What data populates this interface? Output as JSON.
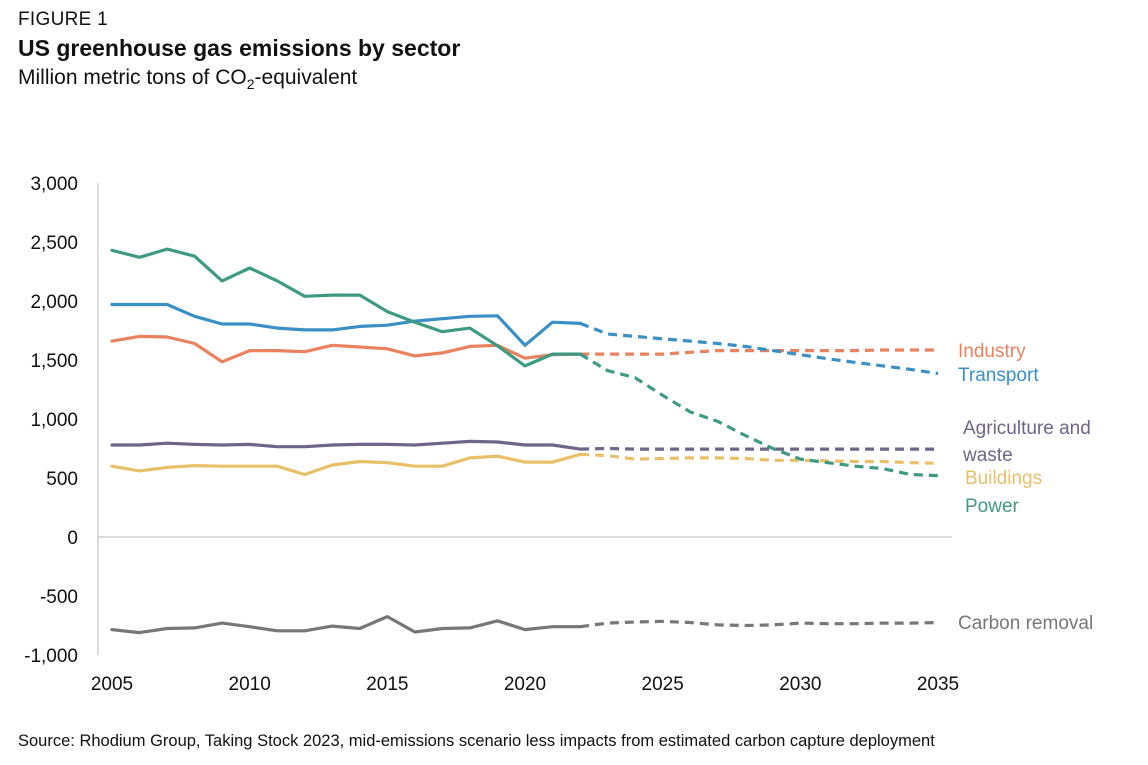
{
  "header": {
    "kicker": "FIGURE 1",
    "title": "US greenhouse gas emissions by sector",
    "subtitle_main": "Million metric tons of CO",
    "subtitle_sub": "2",
    "subtitle_tail": "-equivalent"
  },
  "footer": {
    "source": "Source: Rhodium Group, Taking Stock 2023, mid-emissions scenario less impacts from estimated carbon capture deployment"
  },
  "chart_data": {
    "type": "line",
    "title": "US greenhouse gas emissions by sector",
    "ylabel": "Million metric tons of CO2-equivalent",
    "xlim": [
      2005,
      2035
    ],
    "ylim": [
      -1000,
      3000
    ],
    "x_ticks": [
      2005,
      2010,
      2015,
      2020,
      2025,
      2030,
      2035
    ],
    "y_ticks": [
      3000,
      2500,
      2000,
      1500,
      1000,
      500,
      0,
      -500,
      -1000
    ],
    "y_tick_labels": [
      "3,000",
      "2,500",
      "2,000",
      "1,500",
      "1,000",
      "500",
      "0",
      "-500",
      "-1,000"
    ],
    "x_tick_labels": [
      "2005",
      "2010",
      "2015",
      "2020",
      "2025",
      "2030",
      "2035"
    ],
    "grid": false,
    "legend": "direct labels at right end of lines",
    "historical_end": 2022,
    "projection_style": "dashed",
    "x": [
      2005,
      2006,
      2007,
      2008,
      2009,
      2010,
      2011,
      2012,
      2013,
      2014,
      2015,
      2016,
      2017,
      2018,
      2019,
      2020,
      2021,
      2022,
      2023,
      2024,
      2025,
      2026,
      2027,
      2028,
      2029,
      2030,
      2031,
      2032,
      2033,
      2034,
      2035
    ],
    "series": [
      {
        "name": "Industry",
        "color": "#E8825F",
        "values": [
          1660,
          1700,
          1695,
          1640,
          1485,
          1580,
          1580,
          1570,
          1625,
          1610,
          1595,
          1535,
          1560,
          1615,
          1625,
          1515,
          1545,
          1550,
          1550,
          1550,
          1550,
          1565,
          1580,
          1580,
          1580,
          1580,
          1580,
          1580,
          1585,
          1585,
          1585
        ]
      },
      {
        "name": "Transport",
        "color": "#3A8FC4",
        "values": [
          1970,
          1970,
          1970,
          1870,
          1805,
          1805,
          1770,
          1755,
          1755,
          1785,
          1795,
          1830,
          1850,
          1870,
          1875,
          1625,
          1820,
          1810,
          1720,
          1700,
          1680,
          1660,
          1640,
          1615,
          1580,
          1545,
          1510,
          1480,
          1450,
          1420,
          1385
        ]
      },
      {
        "name": "Agriculture and waste",
        "color": "#6E6589",
        "values": [
          780,
          780,
          795,
          785,
          780,
          785,
          765,
          765,
          780,
          785,
          785,
          780,
          795,
          810,
          805,
          780,
          780,
          745,
          750,
          745,
          745,
          745,
          745,
          745,
          745,
          745,
          745,
          745,
          745,
          745,
          745
        ]
      },
      {
        "name": "Buildings",
        "color": "#E9C06A",
        "values": [
          600,
          560,
          590,
          605,
          600,
          600,
          600,
          530,
          610,
          640,
          630,
          600,
          600,
          670,
          685,
          635,
          635,
          700,
          690,
          660,
          665,
          670,
          670,
          665,
          650,
          650,
          645,
          640,
          640,
          630,
          625
        ]
      },
      {
        "name": "Power",
        "color": "#3E9A83",
        "values": [
          2430,
          2370,
          2440,
          2380,
          2170,
          2280,
          2170,
          2040,
          2050,
          2050,
          1910,
          1820,
          1740,
          1770,
          1620,
          1450,
          1550,
          1550,
          1410,
          1350,
          1200,
          1060,
          980,
          860,
          750,
          660,
          630,
          600,
          580,
          530,
          520
        ]
      },
      {
        "name": "Carbon removal",
        "color": "#777777",
        "values": [
          -785,
          -810,
          -775,
          -770,
          -730,
          -760,
          -795,
          -795,
          -755,
          -775,
          -675,
          -805,
          -775,
          -770,
          -710,
          -785,
          -760,
          -760,
          -730,
          -720,
          -715,
          -725,
          -745,
          -750,
          -745,
          -730,
          -735,
          -735,
          -730,
          -730,
          -725
        ]
      }
    ]
  }
}
